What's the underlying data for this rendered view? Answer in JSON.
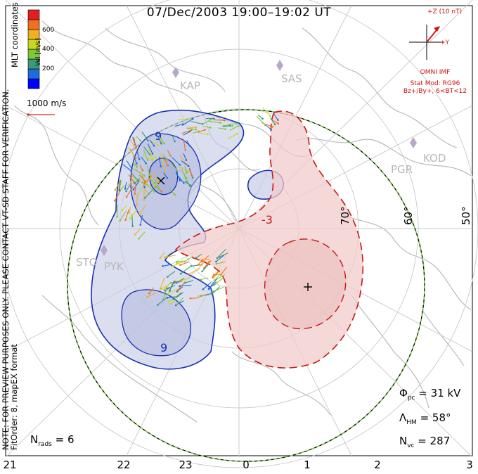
{
  "title": "07/Dec/2003 19:00–19:02 UT",
  "side_note": {
    "line1": "NOTE: FOR PREVIEW PURPOSES ONLY. PLEASE CONTACT VT-SD STAFF FOR VERIFICATION.",
    "line2": "FitOrder: 8, mapEX format",
    "line3": "MLT coordinates"
  },
  "colorbar": {
    "title": "Vel [m/s]",
    "ticks": [
      "600",
      "400",
      "200"
    ],
    "colors": [
      "#0000ff",
      "#1e6ed8",
      "#3a9a7a",
      "#7fc83a",
      "#c8d820",
      "#f0b020",
      "#f07020",
      "#e02020"
    ]
  },
  "scale_vector": {
    "label": "1000 m/s",
    "color": "#e02020"
  },
  "imf": {
    "z_label": "+Z (10 nT)",
    "y_label": "+Y",
    "source": "OMNI IMF",
    "model": "Stat Mod: RG96",
    "condition": "Bz+/By+, 6<BT<12",
    "color": "#d01010"
  },
  "stations": [
    "KAP",
    "SAS",
    "KOD",
    "PGR",
    "STO",
    "PYK"
  ],
  "latitude_labels": [
    "70°",
    "60°",
    "50°"
  ],
  "mlt_labels": [
    "21",
    "22",
    "23",
    "0",
    "1",
    "2",
    "3"
  ],
  "contour_labels": [
    "9",
    "9",
    "-3"
  ],
  "stats": {
    "phi_symbol": "Φ",
    "phi_sub": "pc",
    "phi_value": "= 31 kV",
    "lambda_symbol": "Λ",
    "lambda_sub": "HM",
    "lambda_value": "= 58°",
    "nvc_symbol": "N",
    "nvc_sub": "vc",
    "nvc_value": "= 287"
  },
  "nrads": {
    "symbol": "N",
    "sub": "rads",
    "value": "= 6"
  },
  "cells": {
    "negative_color": "#c8cce6",
    "positive_color": "#f2cccc",
    "negative_line": "#1830b0",
    "positive_line": "#c81818"
  },
  "icons": [
    "station-marker-icon",
    "imf-axes-icon",
    "plus-marker-icon"
  ]
}
